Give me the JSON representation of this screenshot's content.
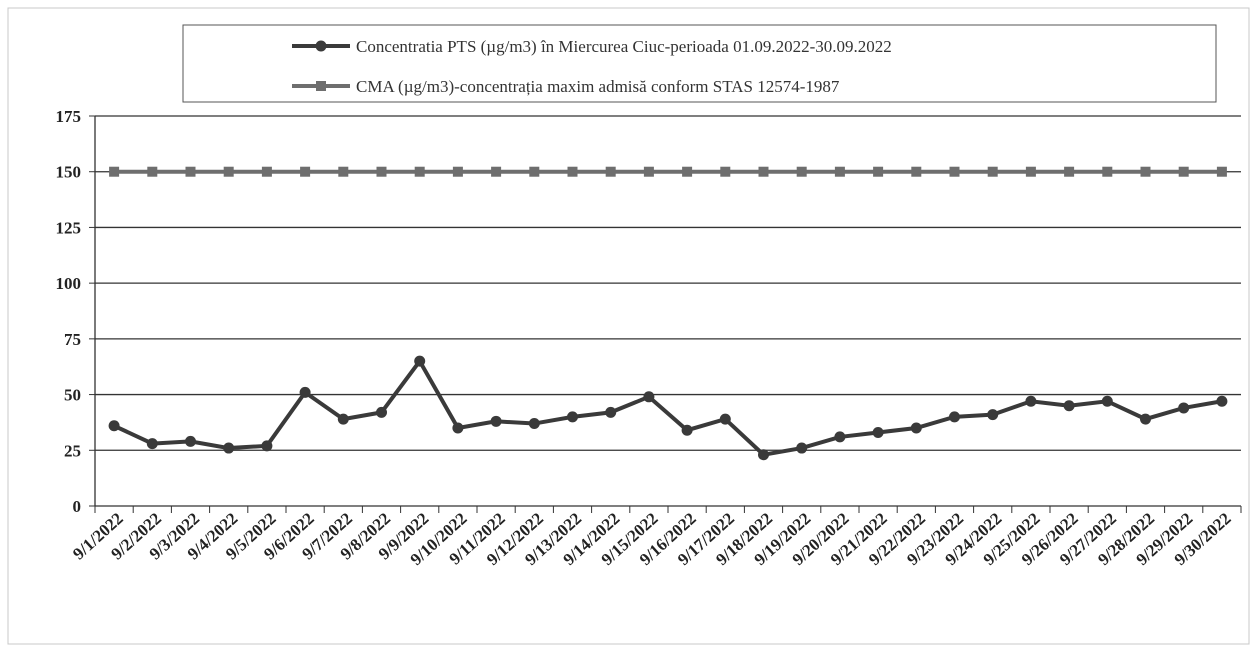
{
  "chart_data": {
    "type": "line",
    "categories": [
      "9/1/2022",
      "9/2/2022",
      "9/3/2022",
      "9/4/2022",
      "9/5/2022",
      "9/6/2022",
      "9/7/2022",
      "9/8/2022",
      "9/9/2022",
      "9/10/2022",
      "9/11/2022",
      "9/12/2022",
      "9/13/2022",
      "9/14/2022",
      "9/15/2022",
      "9/16/2022",
      "9/17/2022",
      "9/18/2022",
      "9/19/2022",
      "9/20/2022",
      "9/21/2022",
      "9/22/2022",
      "9/23/2022",
      "9/24/2022",
      "9/25/2022",
      "9/26/2022",
      "9/27/2022",
      "9/28/2022",
      "9/29/2022",
      "9/30/2022"
    ],
    "series": [
      {
        "name": "Concentratia PTS (µg/m3) în Miercurea Ciuc-perioada 01.09.2022-30.09.2022",
        "color": "#3a3a3a",
        "marker": "circle",
        "values": [
          36,
          28,
          29,
          26,
          27,
          51,
          39,
          42,
          65,
          35,
          38,
          37,
          40,
          42,
          49,
          34,
          39,
          23,
          26,
          31,
          33,
          35,
          40,
          41,
          47,
          45,
          47,
          39,
          44,
          47
        ]
      },
      {
        "name": "CMA (µg/m3)-concentrația maxim admisă conform STAS 12574-1987",
        "color": "#6e6e6e",
        "marker": "square",
        "values": [
          150,
          150,
          150,
          150,
          150,
          150,
          150,
          150,
          150,
          150,
          150,
          150,
          150,
          150,
          150,
          150,
          150,
          150,
          150,
          150,
          150,
          150,
          150,
          150,
          150,
          150,
          150,
          150,
          150,
          150
        ]
      }
    ],
    "ylim": [
      0,
      175
    ],
    "yticks": [
      0,
      25,
      50,
      75,
      100,
      125,
      150,
      175
    ],
    "grid": true,
    "legend": "top"
  }
}
